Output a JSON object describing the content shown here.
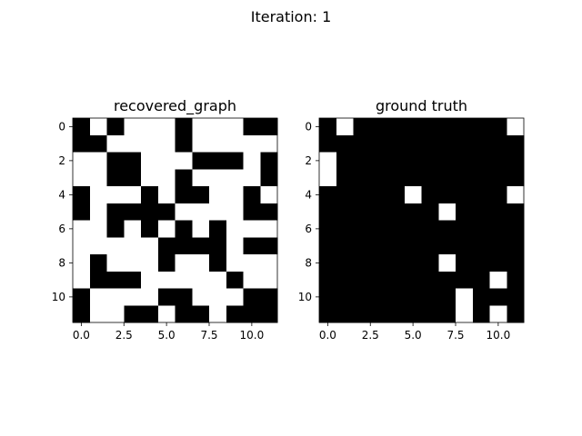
{
  "figure": {
    "suptitle": "Iteration: 1"
  },
  "chart_data": [
    {
      "type": "heatmap",
      "title": "recovered_graph",
      "colormap": "gray_r (1 = black, 0 = white)",
      "xticks": [
        "0.0",
        "2.5",
        "5.0",
        "7.5",
        "10.0"
      ],
      "yticks": [
        "0",
        "2",
        "4",
        "6",
        "8",
        "10"
      ],
      "xtick_values": [
        0,
        2.5,
        5,
        7.5,
        10
      ],
      "ytick_values": [
        0,
        2,
        4,
        6,
        8,
        10
      ],
      "xlim": [
        -0.5,
        11.5
      ],
      "ylim": [
        11.5,
        -0.5
      ],
      "grid": false,
      "matrix": [
        [
          1,
          0,
          1,
          0,
          0,
          0,
          1,
          0,
          0,
          0,
          1,
          1
        ],
        [
          1,
          1,
          0,
          0,
          0,
          0,
          1,
          0,
          0,
          0,
          0,
          0
        ],
        [
          0,
          0,
          1,
          1,
          0,
          0,
          0,
          1,
          1,
          1,
          0,
          1
        ],
        [
          0,
          0,
          1,
          1,
          0,
          0,
          1,
          0,
          0,
          0,
          0,
          1
        ],
        [
          1,
          0,
          0,
          0,
          1,
          0,
          1,
          1,
          0,
          0,
          1,
          0
        ],
        [
          1,
          0,
          1,
          1,
          1,
          1,
          0,
          0,
          0,
          0,
          1,
          1
        ],
        [
          0,
          0,
          1,
          0,
          1,
          0,
          1,
          0,
          1,
          0,
          0,
          0
        ],
        [
          0,
          0,
          0,
          0,
          0,
          1,
          1,
          1,
          1,
          0,
          1,
          1
        ],
        [
          0,
          1,
          0,
          0,
          0,
          1,
          0,
          0,
          1,
          0,
          0,
          0
        ],
        [
          0,
          1,
          1,
          1,
          0,
          0,
          0,
          0,
          0,
          1,
          0,
          0
        ],
        [
          1,
          0,
          0,
          0,
          0,
          1,
          1,
          0,
          0,
          0,
          1,
          1
        ],
        [
          1,
          0,
          0,
          1,
          1,
          0,
          1,
          1,
          0,
          1,
          1,
          1
        ]
      ]
    },
    {
      "type": "heatmap",
      "title": "ground truth",
      "colormap": "gray_r (1 = black, 0 = white)",
      "xticks": [
        "0.0",
        "2.5",
        "5.0",
        "7.5",
        "10.0"
      ],
      "yticks": [
        "0",
        "2",
        "4",
        "6",
        "8",
        "10"
      ],
      "xtick_values": [
        0,
        2.5,
        5,
        7.5,
        10
      ],
      "ytick_values": [
        0,
        2,
        4,
        6,
        8,
        10
      ],
      "xlim": [
        -0.5,
        11.5
      ],
      "ylim": [
        11.5,
        -0.5
      ],
      "grid": false,
      "matrix": [
        [
          1,
          0,
          1,
          1,
          1,
          1,
          1,
          1,
          1,
          1,
          1,
          0
        ],
        [
          1,
          1,
          1,
          1,
          1,
          1,
          1,
          1,
          1,
          1,
          1,
          1
        ],
        [
          0,
          1,
          1,
          1,
          1,
          1,
          1,
          1,
          1,
          1,
          1,
          1
        ],
        [
          0,
          1,
          1,
          1,
          1,
          1,
          1,
          1,
          1,
          1,
          1,
          1
        ],
        [
          1,
          1,
          1,
          1,
          1,
          0,
          1,
          1,
          1,
          1,
          1,
          0
        ],
        [
          1,
          1,
          1,
          1,
          1,
          1,
          1,
          0,
          1,
          1,
          1,
          1
        ],
        [
          1,
          1,
          1,
          1,
          1,
          1,
          1,
          1,
          1,
          1,
          1,
          1
        ],
        [
          1,
          1,
          1,
          1,
          1,
          1,
          1,
          1,
          1,
          1,
          1,
          1
        ],
        [
          1,
          1,
          1,
          1,
          1,
          1,
          1,
          0,
          1,
          1,
          1,
          1
        ],
        [
          1,
          1,
          1,
          1,
          1,
          1,
          1,
          1,
          1,
          1,
          0,
          1
        ],
        [
          1,
          1,
          1,
          1,
          1,
          1,
          1,
          1,
          0,
          1,
          1,
          1
        ],
        [
          1,
          1,
          1,
          1,
          1,
          1,
          1,
          1,
          0,
          1,
          0,
          1
        ]
      ]
    }
  ]
}
